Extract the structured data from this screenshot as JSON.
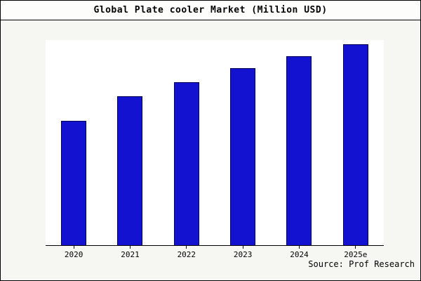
{
  "figure": {
    "title": "Global Plate cooler Market (Million USD)",
    "source": "Source: Prof Research"
  },
  "colors": {
    "bar_fill": "#1212d0",
    "bar_edge": "#000055",
    "page_background": "#f6f6f2",
    "plot_background": "#ffffff",
    "axis": "#000000"
  },
  "chart_data": {
    "type": "bar",
    "categories": [
      "2020",
      "2021",
      "2022",
      "2023",
      "2024",
      "2025e"
    ],
    "values": [
      62,
      74,
      81,
      88,
      94,
      100
    ],
    "title": "Global Plate cooler Market (Million USD)",
    "xlabel": "",
    "ylabel": "",
    "ylim": [
      0,
      102
    ],
    "grid": false,
    "legend": false,
    "y_axis_labels_shown": false,
    "source_annotation": "Source: Prof Research"
  }
}
